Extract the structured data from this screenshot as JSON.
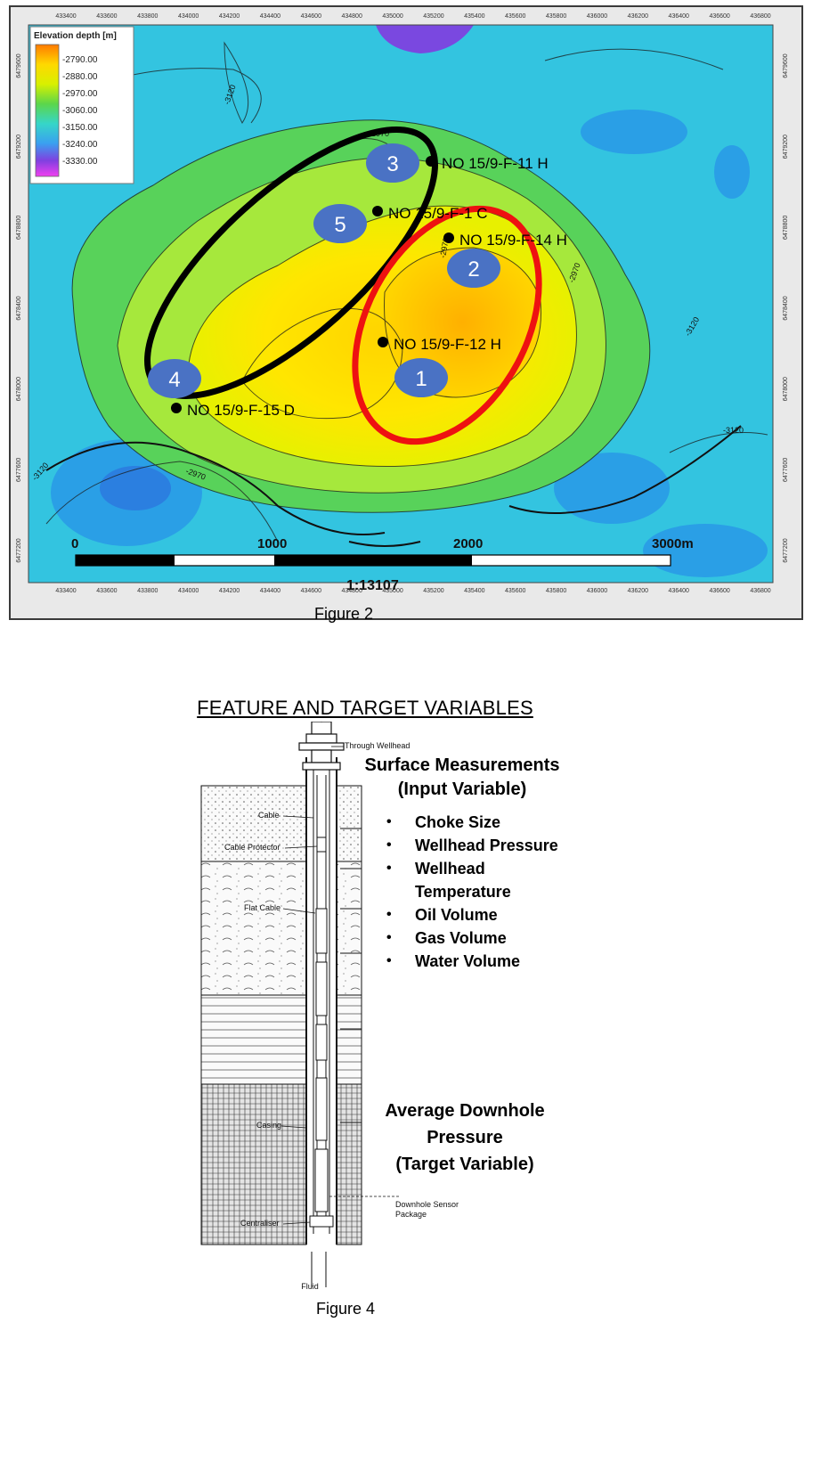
{
  "map": {
    "legend_title": "Elevation depth [m]",
    "legend_values": [
      "-2790.00",
      "-2880.00",
      "-2970.00",
      "-3060.00",
      "-3150.00",
      "-3240.00",
      "-3330.00"
    ],
    "legend_colors": [
      "#ff7a00",
      "#ffd800",
      "#d8f000",
      "#5cd64a",
      "#36d6c8",
      "#3aa0f0",
      "#8040e0",
      "#f040f0"
    ],
    "x_ticks": [
      "433400",
      "433600",
      "433800",
      "434000",
      "434200",
      "434400",
      "434600",
      "434800",
      "435000",
      "435200",
      "435400",
      "435600",
      "435800",
      "436000",
      "436200",
      "436400",
      "436600",
      "436800"
    ],
    "y_ticks": [
      "6479600",
      "6479200",
      "6478800",
      "6478400",
      "6478000",
      "6477600",
      "6477200"
    ],
    "contour_labels": [
      "-3120",
      "-2970",
      "-2970",
      "-3120",
      "-3120",
      "-2970",
      "-2970",
      "-3120"
    ],
    "wells": [
      "NO 15/9-F-11 H",
      "NO 15/9-F-1 C",
      "NO 15/9-F-14 H",
      "NO 15/9-F-12 H",
      "NO 15/9-F-15 D"
    ],
    "markers": [
      "3",
      "5",
      "2",
      "1",
      "4"
    ],
    "scale_labels": [
      "0",
      "1000",
      "2000",
      "3000m"
    ],
    "scale_ratio": "1:13107"
  },
  "figure2_caption": "Figure 2",
  "feature_heading": "FEATURE AND TARGET VARIABLES",
  "wellbore_labels": {
    "through_wellhead": "Through Wellhead",
    "cable": "Cable",
    "cable_protector": "Cable Protector",
    "flat_cable": "Flat Cable",
    "casing": "Casing",
    "centraliser": "Centraliser",
    "downhole_sensor": "Downhole Sensor",
    "package": "Package",
    "fluid": "Fluid"
  },
  "surface": {
    "title": "Surface Measurements",
    "subtitle": "(Input Variable)",
    "items": [
      "Choke Size",
      "Wellhead Pressure",
      "Wellhead",
      "Oil Volume",
      "Gas Volume",
      "Water Volume"
    ],
    "item_continuation": "Temperature"
  },
  "downhole": {
    "line1": "Average Downhole",
    "line2": "Pressure",
    "line3": "(Target Variable)"
  },
  "figure4_caption": "Figure 4"
}
